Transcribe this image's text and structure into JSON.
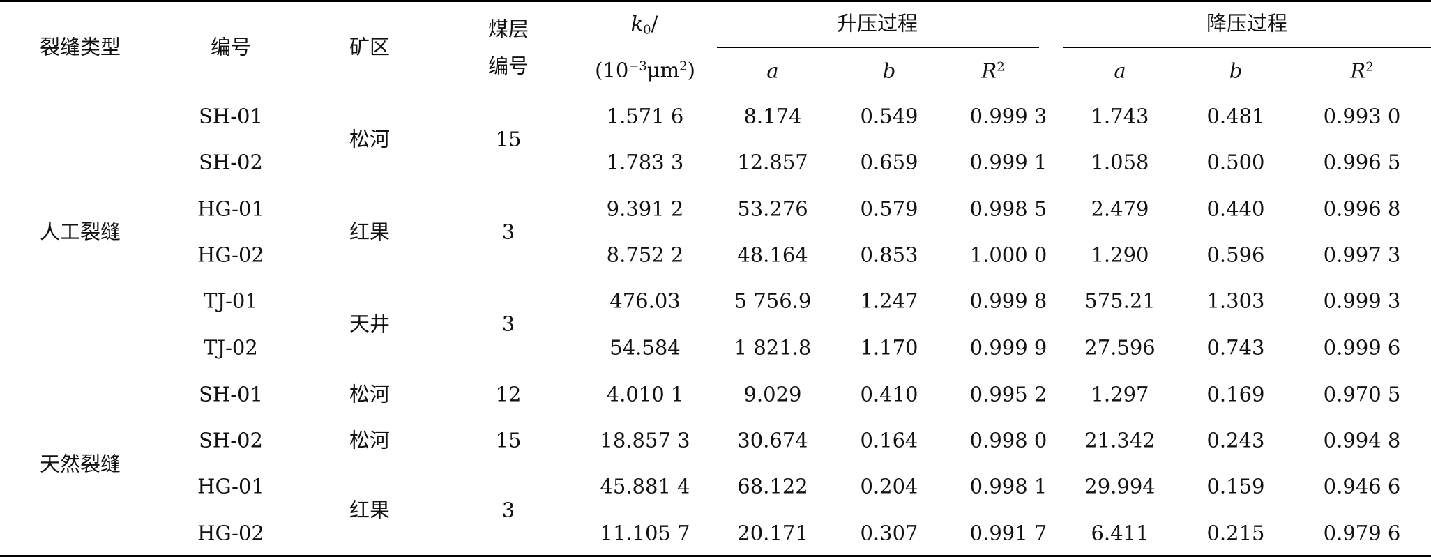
{
  "table": {
    "header": {
      "type": "裂缝类型",
      "id": "编号",
      "mine": "矿区",
      "seam_line1": "煤层",
      "seam_line2": "编号",
      "k0_symbol": "k",
      "k0_sub": "0",
      "k0_slash": "/",
      "k0_unit_pre": "(10",
      "k0_unit_exp": "−3",
      "k0_unit_mid": "μm",
      "k0_unit_sq": "2",
      "k0_unit_post": ")",
      "increase": "升压过程",
      "decrease": "降压过程",
      "a": "a",
      "b": "b",
      "r": "R",
      "r_sup": "2"
    },
    "groups": [
      {
        "label": "人工裂缝"
      },
      {
        "label": "天然裂缝"
      }
    ],
    "mine_cells": [
      "松河",
      "红果",
      "天井",
      "松河",
      "松河",
      "红果"
    ],
    "seam_cells": [
      "15",
      "3",
      "3",
      "12",
      "15",
      "3"
    ],
    "rows": [
      {
        "id": "SH-01",
        "k0": "1.571 6",
        "ia": "8.174",
        "ib": "0.549",
        "ir": "0.999 3",
        "da": "1.743",
        "db": "0.481",
        "dr": "0.993 0"
      },
      {
        "id": "SH-02",
        "k0": "1.783 3",
        "ia": "12.857",
        "ib": "0.659",
        "ir": "0.999 1",
        "da": "1.058",
        "db": "0.500",
        "dr": "0.996 5"
      },
      {
        "id": "HG-01",
        "k0": "9.391 2",
        "ia": "53.276",
        "ib": "0.579",
        "ir": "0.998 5",
        "da": "2.479",
        "db": "0.440",
        "dr": "0.996 8"
      },
      {
        "id": "HG-02",
        "k0": "8.752 2",
        "ia": "48.164",
        "ib": "0.853",
        "ir": "1.000 0",
        "da": "1.290",
        "db": "0.596",
        "dr": "0.997 3"
      },
      {
        "id": "TJ-01",
        "k0": "476.03",
        "ia": "5 756.9",
        "ib": "1.247",
        "ir": "0.999 8",
        "da": "575.21",
        "db": "1.303",
        "dr": "0.999 3"
      },
      {
        "id": "TJ-02",
        "k0": "54.584",
        "ia": "1 821.8",
        "ib": "1.170",
        "ir": "0.999 9",
        "da": "27.596",
        "db": "0.743",
        "dr": "0.999 6"
      },
      {
        "id": "SH-01",
        "k0": "4.010 1",
        "ia": "9.029",
        "ib": "0.410",
        "ir": "0.995 2",
        "da": "1.297",
        "db": "0.169",
        "dr": "0.970 5"
      },
      {
        "id": "SH-02",
        "k0": "18.857 3",
        "ia": "30.674",
        "ib": "0.164",
        "ir": "0.998 0",
        "da": "21.342",
        "db": "0.243",
        "dr": "0.994 8"
      },
      {
        "id": "HG-01",
        "k0": "45.881 4",
        "ia": "68.122",
        "ib": "0.204",
        "ir": "0.998 1",
        "da": "29.994",
        "db": "0.159",
        "dr": "0.946 6"
      },
      {
        "id": "HG-02",
        "k0": "11.105 7",
        "ia": "20.171",
        "ib": "0.307",
        "ir": "0.991 7",
        "da": "6.411",
        "db": "0.215",
        "dr": "0.979 6"
      }
    ]
  }
}
